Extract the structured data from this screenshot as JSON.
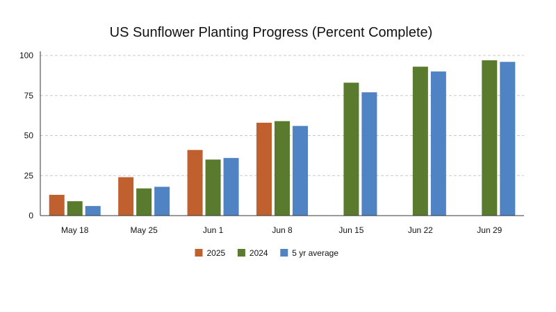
{
  "chart_data": {
    "type": "bar",
    "title": "US Sunflower Planting Progress (Percent Complete)",
    "xlabel": "",
    "ylabel": "",
    "categories": [
      "May 18",
      "May 25",
      "Jun 1",
      "Jun 8",
      "Jun 15",
      "Jun 22",
      "Jun 29"
    ],
    "series": [
      {
        "name": "2025",
        "color": "#c0602f",
        "values": [
          13,
          24,
          41,
          58,
          null,
          null,
          null
        ]
      },
      {
        "name": "2024",
        "color": "#5a7a2e",
        "values": [
          9,
          17,
          35,
          59,
          83,
          93,
          97
        ]
      },
      {
        "name": "5 yr average",
        "color": "#4f83c3",
        "values": [
          6,
          18,
          36,
          56,
          77,
          90,
          96
        ]
      }
    ],
    "ylim": [
      0,
      100
    ],
    "yticks": [
      0,
      25,
      50,
      75,
      100
    ],
    "grid": true,
    "legend_position": "bottom-center"
  }
}
